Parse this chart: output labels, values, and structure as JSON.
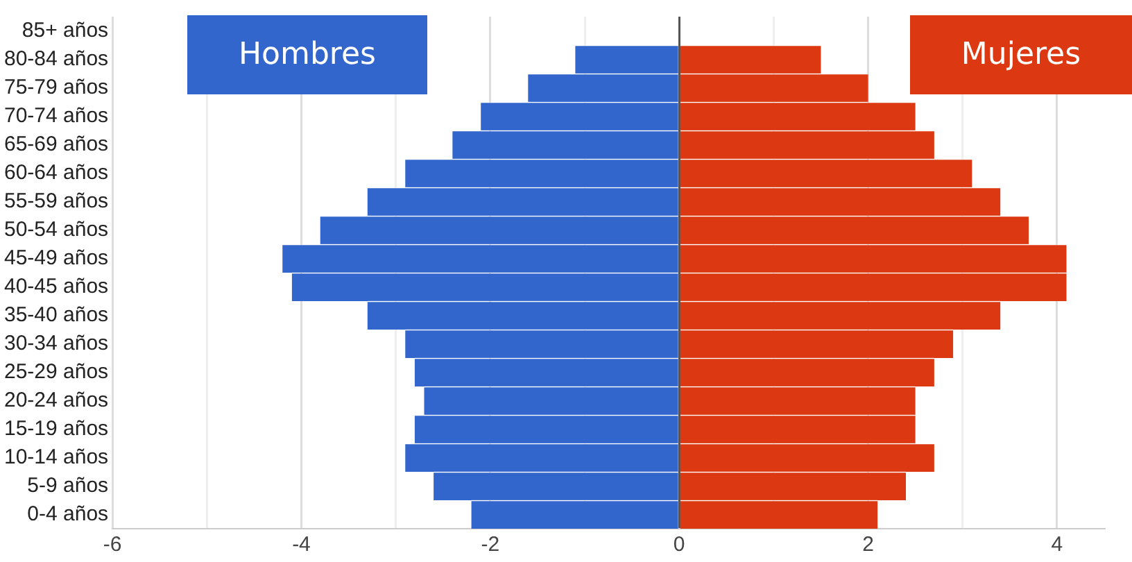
{
  "chart_data": {
    "type": "bar",
    "orientation": "horizontal",
    "stacked": true,
    "categories": [
      "85+ años",
      "80-84 años",
      "75-79 años",
      "70-74 años",
      "65-69 años",
      "60-64 años",
      "55-59 años",
      "50-54 años",
      "45-49 años",
      "40-45 años",
      "35-40 años",
      "30-34 años",
      "25-29 años",
      "20-24 años",
      "15-19 años",
      "10-14 años",
      "5-9 años",
      "0-4 años"
    ],
    "series": [
      {
        "name": "Hombres",
        "color": "#3366cc",
        "values": [
          0,
          -1.1,
          -1.6,
          -2.1,
          -2.4,
          -2.9,
          -3.3,
          -3.8,
          -4.2,
          -4.1,
          -3.3,
          -2.9,
          -2.8,
          -2.7,
          -2.8,
          -2.9,
          -2.6,
          -2.2
        ]
      },
      {
        "name": "Mujeres",
        "color": "#dc3912",
        "values": [
          0,
          1.5,
          2.0,
          2.5,
          2.7,
          3.1,
          3.4,
          3.7,
          4.1,
          4.1,
          3.4,
          2.9,
          2.7,
          2.5,
          2.5,
          2.7,
          2.4,
          2.1
        ]
      }
    ],
    "xlim": [
      -6,
      4.5
    ],
    "xticks": [
      -6,
      {
        "value": -5,
        "label": null
      },
      -4,
      {
        "value": -3,
        "label": null
      },
      -2,
      {
        "value": -1,
        "label": null
      },
      0,
      {
        "value": 1,
        "label": null
      },
      2,
      {
        "value": 3,
        "label": null
      },
      4
    ],
    "grid": "x",
    "legend": "top"
  }
}
